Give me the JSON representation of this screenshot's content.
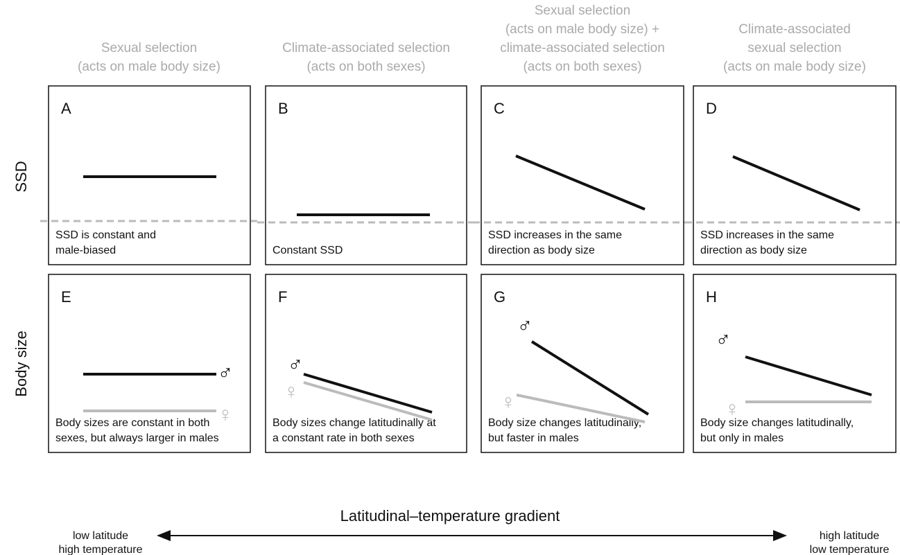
{
  "columns": [
    {
      "header": [
        "Sexual selection",
        "(acts on male body size)"
      ]
    },
    {
      "header": [
        "Climate-associated selection",
        "(acts on both sexes)"
      ]
    },
    {
      "header": [
        "Sexual selection",
        "(acts on male body size) +",
        "climate-associated selection",
        "(acts on both sexes)"
      ]
    },
    {
      "header": [
        "Climate-associated",
        "sexual selection",
        "(acts on male body size)"
      ]
    }
  ],
  "rows": [
    "SSD",
    "Body size"
  ],
  "panels": [
    {
      "letter": "A",
      "caption": [
        "SSD is constant and",
        "male-biased"
      ]
    },
    {
      "letter": "B",
      "caption": [
        "Constant SSD"
      ]
    },
    {
      "letter": "C",
      "caption": [
        "SSD increases in the same",
        "direction as body size"
      ]
    },
    {
      "letter": "D",
      "caption": [
        "SSD increases in the same",
        "direction as body size"
      ]
    },
    {
      "letter": "E",
      "caption": [
        "Body sizes are constant in both",
        "sexes, but always larger in males"
      ]
    },
    {
      "letter": "F",
      "caption": [
        "Body sizes change latitudinally at",
        "a constant rate in both sexes"
      ]
    },
    {
      "letter": "G",
      "caption": [
        "Body size changes latitudinally,",
        "but faster in males"
      ]
    },
    {
      "letter": "H",
      "caption": [
        "Body size changes latitudinally,",
        "but only in males"
      ]
    }
  ],
  "male_symbol": "♂",
  "female_symbol": "♀",
  "axis": {
    "title": "Latitudinal–temperature gradient",
    "left": [
      "low latitude",
      "high temperature"
    ],
    "right": [
      "high latitude",
      "low temperature"
    ]
  }
}
